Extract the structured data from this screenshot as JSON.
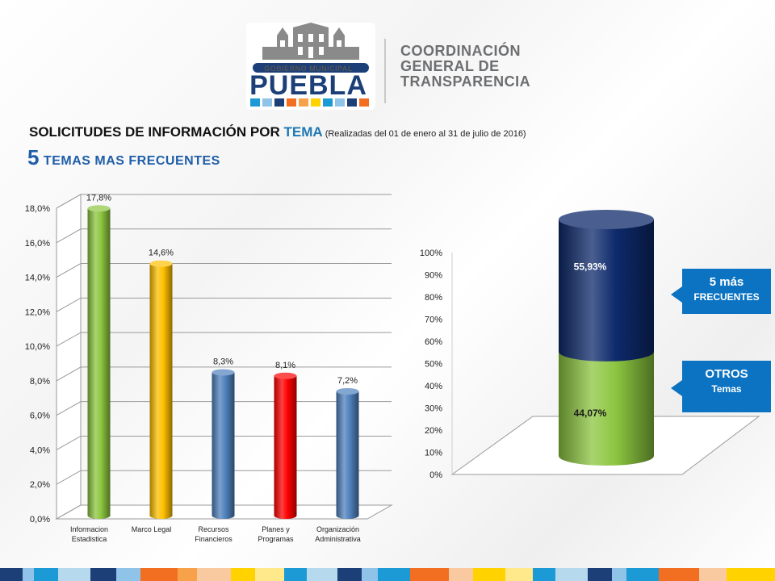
{
  "header": {
    "logo_caption": "GOBIERNO MUNICIPAL",
    "logo_word": "PUEBLA",
    "org_lines": [
      "COORDINACIÓN",
      "GENERAL DE",
      "TRANSPARENCIA"
    ]
  },
  "title": {
    "main": "SOLICITUDES DE INFORMACIÓN POR ",
    "accent": "TEMA",
    "note": " (Realizadas del 01 de enero al 31 de julio de 2016)"
  },
  "subtitle": {
    "num": "5",
    "text": " TEMAS MAS FRECUENTES"
  },
  "callouts": [
    {
      "line1": "5 más",
      "line2": "FRECUENTES"
    },
    {
      "line1": "OTROS",
      "line2": "Temas"
    }
  ],
  "colors": {
    "green": "#8cc63f",
    "yellow": "#ffc000",
    "blue": "#4f81bd",
    "red": "#ff0000",
    "navy": "#0d2a6b",
    "callout": "#0b73c2"
  },
  "chart_data": [
    {
      "type": "bar",
      "categories": [
        [
          "Informacion",
          "Estadistica"
        ],
        [
          "Marco Legal"
        ],
        [
          "Recursos",
          "Financieros"
        ],
        [
          "Planes y",
          "Programas"
        ],
        [
          "Organización",
          "Administrativa"
        ]
      ],
      "values": [
        17.8,
        14.6,
        8.3,
        8.1,
        7.2
      ],
      "data_labels": [
        "17,8%",
        "14,6%",
        "8,3%",
        "8,1%",
        "7,2%"
      ],
      "bar_colors": [
        "#8cc63f",
        "#ffc000",
        "#4f81bd",
        "#ff0000",
        "#4f81bd"
      ],
      "ylim": [
        0,
        18
      ],
      "yticks": [
        0,
        2,
        4,
        6,
        8,
        10,
        12,
        14,
        16,
        18
      ],
      "ytick_labels": [
        "0,0%",
        "2,0%",
        "4,0%",
        "6,0%",
        "8,0%",
        "10,0%",
        "12,0%",
        "14,0%",
        "16,0%",
        "18,0%"
      ],
      "grid": true
    },
    {
      "type": "bar",
      "stacked": true,
      "series": [
        {
          "values": [
            44.07
          ],
          "label": "44,07%",
          "color": "#8cc63f"
        },
        {
          "values": [
            55.93
          ],
          "label": "55,93%",
          "color": "#0d2a6b"
        }
      ],
      "ylim": [
        0,
        100
      ],
      "yticks": [
        0,
        10,
        20,
        30,
        40,
        50,
        60,
        70,
        80,
        90,
        100
      ],
      "ytick_labels": [
        "0%",
        "10%",
        "20%",
        "30%",
        "40%",
        "50%",
        "60%",
        "70%",
        "80%",
        "90%",
        "100%"
      ],
      "grid": false
    }
  ]
}
